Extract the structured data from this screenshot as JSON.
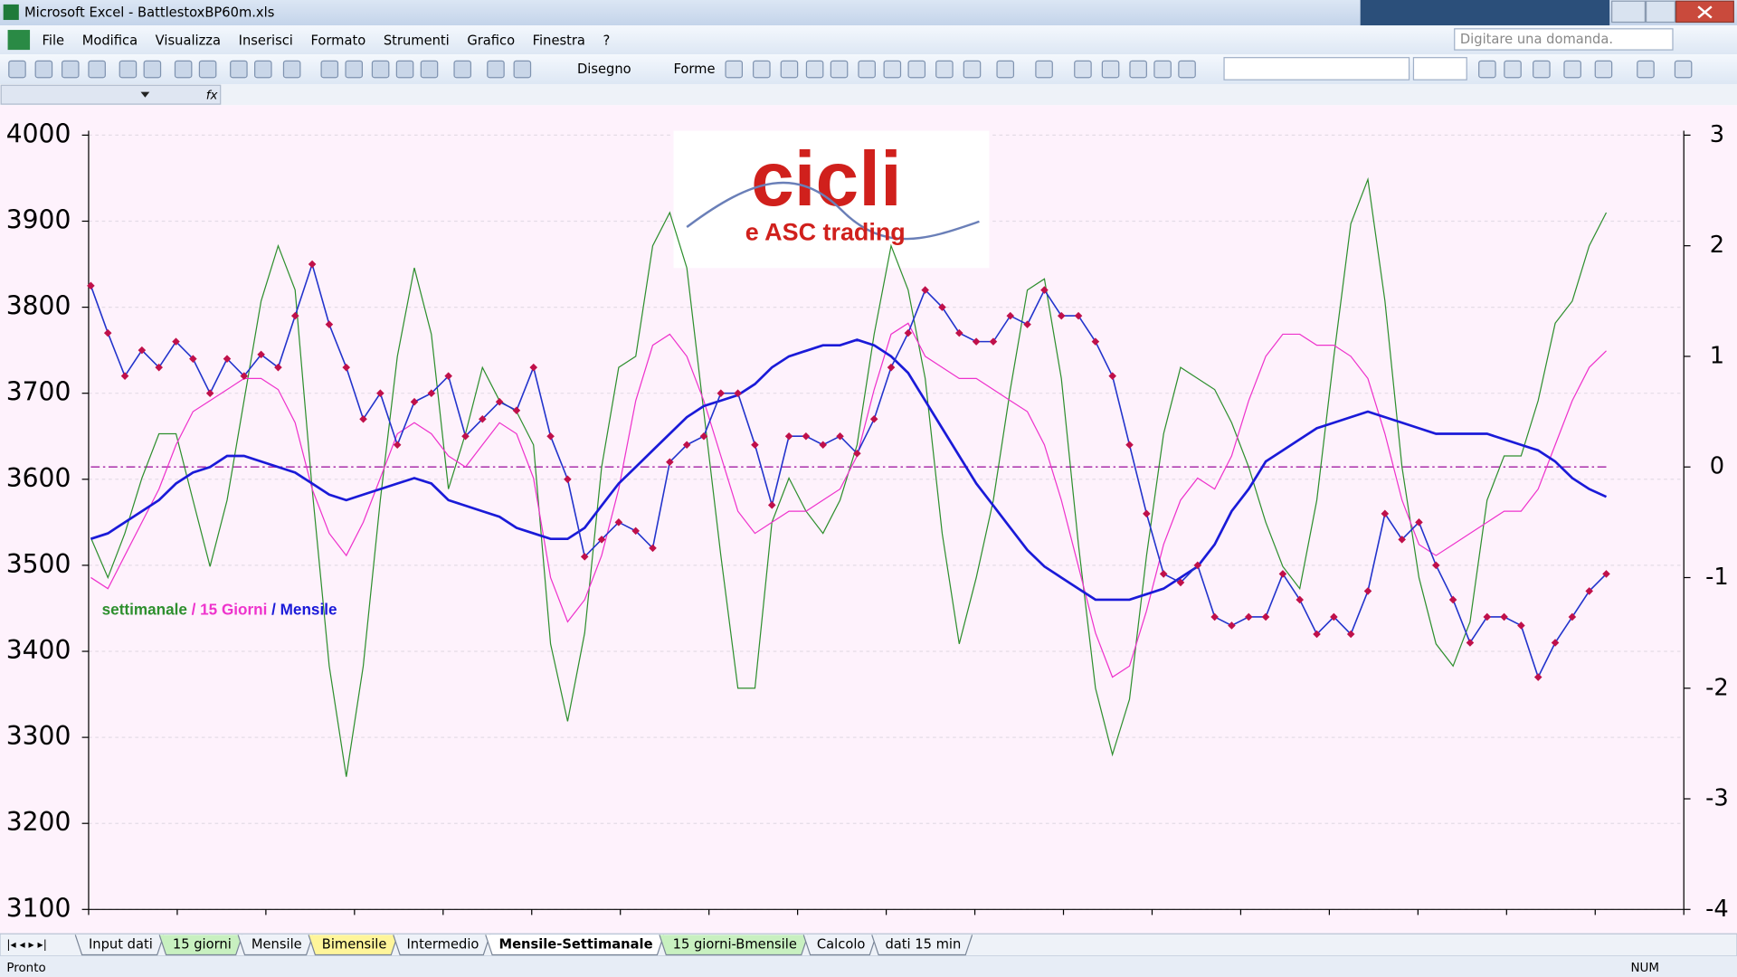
{
  "window": {
    "title": "Microsoft Excel - BattlestoxBP60m.xls"
  },
  "menu": [
    "File",
    "Modifica",
    "Visualizza",
    "Inserisci",
    "Formato",
    "Strumenti",
    "Grafico",
    "Finestra",
    "?"
  ],
  "help_box": "Digitare una domanda.",
  "toolbar": {
    "draw": "Disegno",
    "shapes": "Forme"
  },
  "sheet_tabs": [
    {
      "label": "Input dati"
    },
    {
      "label": "15 giorni",
      "color": "#c8f0c0"
    },
    {
      "label": "Mensile"
    },
    {
      "label": "Bimensile",
      "color": "#fff59a"
    },
    {
      "label": "Intermedio"
    },
    {
      "label": "Mensile-Settimanale",
      "active": true
    },
    {
      "label": "15 giorni-Bmensile",
      "color": "#c8f0c0"
    },
    {
      "label": "Calcolo"
    },
    {
      "label": "dati 15 min"
    }
  ],
  "status": {
    "left": "Pronto",
    "num": "NUM"
  },
  "chart_data": {
    "type": "line",
    "logo": {
      "title": "cicli",
      "subtitle": "e ASC trading"
    },
    "legend_separator": " / ",
    "ylim": [
      3100,
      4000
    ],
    "yticks": [
      3100,
      3200,
      3300,
      3400,
      3500,
      3600,
      3700,
      3800,
      3900,
      4000
    ],
    "y2lim": [
      -4,
      3
    ],
    "y2ticks": [
      -4,
      -3,
      -2,
      -1,
      0,
      1,
      2,
      3
    ],
    "reference_line": {
      "value": 0,
      "axis": "y2",
      "color": "#b040b0"
    },
    "grid": true,
    "categories": [
      null,
      null,
      null,
      null,
      null,
      null,
      null,
      null,
      null,
      null,
      null,
      null,
      null,
      null,
      null,
      null,
      null,
      null,
      null,
      null,
      null,
      null,
      null,
      null,
      null,
      null,
      null,
      null,
      null,
      null,
      null,
      null,
      null,
      null,
      null,
      null,
      null,
      null,
      null,
      null,
      null,
      null,
      null,
      null,
      null,
      null,
      null,
      null,
      null,
      null,
      null,
      null,
      null,
      null,
      null,
      null,
      null,
      null,
      null,
      null,
      null,
      null,
      null,
      null,
      null,
      null,
      null,
      null,
      null,
      null,
      null,
      null,
      null,
      null,
      null,
      null,
      null,
      null,
      null,
      null,
      null,
      null,
      null,
      null,
      null,
      null,
      null,
      null,
      null,
      null
    ],
    "series": [
      {
        "color": "#2233cc",
        "marker_color": "#c0104a",
        "values": [
          3825,
          3770,
          3720,
          3750,
          3730,
          3760,
          3740,
          3700,
          3740,
          3720,
          3745,
          3730,
          3790,
          3850,
          3780,
          3730,
          3670,
          3700,
          3640,
          3690,
          3700,
          3720,
          3650,
          3670,
          3690,
          3680,
          3730,
          3650,
          3600,
          3510,
          3530,
          3550,
          3540,
          3520,
          3620,
          3640,
          3650,
          3700,
          3700,
          3640,
          3570,
          3650,
          3650,
          3640,
          3650,
          3630,
          3670,
          3730,
          3770,
          3820,
          3800,
          3770,
          3760,
          3760,
          3790,
          3780,
          3820,
          3790,
          3790,
          3760,
          3720,
          3640,
          3560,
          3490,
          3480,
          3500,
          3440,
          3430,
          3440,
          3440,
          3490,
          3460,
          3420,
          3440,
          3420,
          3470,
          3560,
          3530,
          3550,
          3500,
          3460,
          3410,
          3440,
          3440,
          3430,
          3370,
          3410,
          3440,
          3470,
          3490
        ]
      },
      {
        "name": "settimanale",
        "color": "#2e8f2e",
        "axis": "y2",
        "values": [
          -0.64,
          -1.0,
          -0.6,
          -0.1,
          0.3,
          0.3,
          -0.3,
          -0.9,
          -0.3,
          0.6,
          1.5,
          2.0,
          1.6,
          -0.2,
          -1.8,
          -2.8,
          -1.8,
          -0.3,
          1.0,
          1.8,
          1.2,
          -0.2,
          0.3,
          0.9,
          0.6,
          0.5,
          0.2,
          -1.6,
          -2.3,
          -1.5,
          0.0,
          0.9,
          1.0,
          2.0,
          2.3,
          1.8,
          0.5,
          -0.8,
          -2.0,
          -2.0,
          -0.5,
          -0.1,
          -0.4,
          -0.6,
          -0.3,
          0.2,
          1.2,
          2.0,
          1.6,
          0.8,
          -0.6,
          -1.6,
          -1.0,
          -0.3,
          0.7,
          1.6,
          1.7,
          0.8,
          -0.7,
          -2.0,
          -2.6,
          -2.1,
          -0.8,
          0.3,
          0.9,
          0.8,
          0.7,
          0.4,
          0.0,
          -0.5,
          -0.9,
          -1.1,
          -0.3,
          1.0,
          2.2,
          2.6,
          1.5,
          0.0,
          -1.0,
          -1.6,
          -1.8,
          -1.4,
          -0.3,
          0.1,
          0.1,
          0.6,
          1.3,
          1.5,
          2.0,
          2.3
        ]
      },
      {
        "name": "15 Giorni",
        "color": "#ee33cc",
        "axis": "y2",
        "values": [
          -1.0,
          -1.1,
          -0.8,
          -0.5,
          -0.2,
          0.2,
          0.5,
          0.6,
          0.7,
          0.8,
          0.8,
          0.7,
          0.4,
          -0.2,
          -0.6,
          -0.8,
          -0.5,
          -0.1,
          0.3,
          0.4,
          0.3,
          0.1,
          0.0,
          0.2,
          0.4,
          0.3,
          -0.1,
          -1.0,
          -1.4,
          -1.2,
          -0.8,
          -0.2,
          0.6,
          1.1,
          1.2,
          1.0,
          0.6,
          0.1,
          -0.4,
          -0.6,
          -0.5,
          -0.4,
          -0.4,
          -0.3,
          -0.2,
          0.1,
          0.7,
          1.2,
          1.3,
          1.0,
          0.9,
          0.8,
          0.8,
          0.7,
          0.6,
          0.5,
          0.2,
          -0.3,
          -0.9,
          -1.5,
          -1.9,
          -1.8,
          -1.3,
          -0.7,
          -0.3,
          -0.1,
          -0.2,
          0.1,
          0.6,
          1.0,
          1.2,
          1.2,
          1.1,
          1.1,
          1.0,
          0.8,
          0.3,
          -0.3,
          -0.7,
          -0.8,
          -0.7,
          -0.6,
          -0.5,
          -0.4,
          -0.4,
          -0.2,
          0.2,
          0.6,
          0.9,
          1.05
        ]
      },
      {
        "name": "Mensile",
        "color": "#1a1ad8",
        "axis": "y2",
        "values": [
          -0.65,
          -0.6,
          -0.5,
          -0.4,
          -0.3,
          -0.15,
          -0.05,
          0.0,
          0.1,
          0.1,
          0.05,
          0.0,
          -0.05,
          -0.15,
          -0.25,
          -0.3,
          -0.25,
          -0.2,
          -0.15,
          -0.1,
          -0.15,
          -0.3,
          -0.35,
          -0.4,
          -0.45,
          -0.55,
          -0.6,
          -0.65,
          -0.65,
          -0.55,
          -0.35,
          -0.15,
          0.0,
          0.15,
          0.3,
          0.45,
          0.55,
          0.6,
          0.65,
          0.75,
          0.9,
          1.0,
          1.05,
          1.1,
          1.1,
          1.15,
          1.1,
          1.0,
          0.85,
          0.6,
          0.35,
          0.1,
          -0.15,
          -0.35,
          -0.55,
          -0.75,
          -0.9,
          -1.0,
          -1.1,
          -1.2,
          -1.2,
          -1.2,
          -1.15,
          -1.1,
          -1.0,
          -0.9,
          -0.7,
          -0.4,
          -0.2,
          0.05,
          0.15,
          0.25,
          0.35,
          0.4,
          0.45,
          0.5,
          0.45,
          0.4,
          0.35,
          0.3,
          0.3,
          0.3,
          0.3,
          0.25,
          0.2,
          0.15,
          0.05,
          -0.1,
          -0.2,
          -0.27
        ]
      }
    ]
  }
}
